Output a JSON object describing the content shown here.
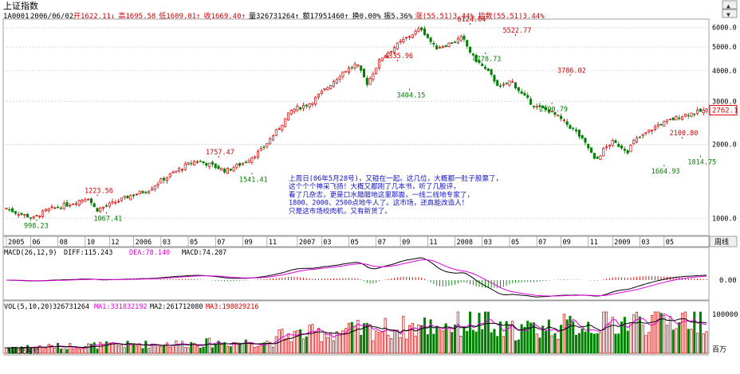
{
  "header": {
    "title": "上证指数",
    "code": "1A0001",
    "date": "2006/06/02",
    "stats": [
      {
        "label": "开",
        "value": "1622.11",
        "color": "#d00000",
        "arrow": "↓"
      },
      {
        "label": "高",
        "value": "1695.58",
        "color": "#d00000",
        "arrow": ""
      },
      {
        "label": "低",
        "value": "1609.01",
        "color": "#d00000",
        "arrow": "↑"
      },
      {
        "label": "收",
        "value": "1669.40",
        "color": "#d00000",
        "arrow": "↑"
      },
      {
        "label": "量",
        "value": "326731264",
        "color": "#000000",
        "arrow": "↑"
      },
      {
        "label": "额",
        "value": "17951460",
        "color": "#000000",
        "arrow": "↑"
      },
      {
        "label": "换",
        "value": "0.00%",
        "color": "#000000",
        "arrow": ""
      },
      {
        "label": "振",
        "value": "5.36%",
        "color": "#000000",
        "arrow": ""
      },
      {
        "label": "涨",
        "value": "(55.51)3.44%",
        "color": "#d00000",
        "arrow": ""
      },
      {
        "label": "指数",
        "value": "(55.51)3.44%",
        "color": "#d00000",
        "arrow": ""
      }
    ]
  },
  "window_buttons": {
    "up": "▲",
    "down": "▼"
  },
  "price_axis": {
    "ticks": [
      {
        "label": "6000.0",
        "value": 6000
      },
      {
        "label": "5000.0",
        "value": 5000
      },
      {
        "label": "4000.0",
        "value": 4000
      },
      {
        "label": "3000.0",
        "value": 3000
      },
      {
        "label": "2000.0",
        "value": 2000
      },
      {
        "label": "1000.0",
        "value": 1000
      }
    ],
    "current_price": "2762.1",
    "scale": "log"
  },
  "price_annotations": [
    {
      "text": "998.23",
      "value": 998.23,
      "pos": "below",
      "color": "#008000",
      "idx": 10
    },
    {
      "text": "1223.56",
      "value": 1223.56,
      "pos": "above",
      "color": "#d00000",
      "idx": 30
    },
    {
      "text": "1067.41",
      "value": 1067.41,
      "pos": "below",
      "color": "#008000",
      "idx": 33
    },
    {
      "text": "1757.47",
      "value": 1757.47,
      "pos": "above",
      "color": "#d00000",
      "idx": 70
    },
    {
      "text": "1541.41",
      "value": 1541.41,
      "pos": "below",
      "color": "#008000",
      "idx": 81
    },
    {
      "text": "4335.96",
      "value": 4335.96,
      "pos": "above",
      "color": "#d00000",
      "idx": 129
    },
    {
      "text": "3404.15",
      "value": 3404.15,
      "pos": "below",
      "color": "#008000",
      "idx": 133
    },
    {
      "text": "6124.04",
      "value": 6124.04,
      "pos": "above",
      "color": "#d00000",
      "idx": 153
    },
    {
      "text": "4778.73",
      "value": 4778.73,
      "pos": "below",
      "color": "#008000",
      "idx": 158
    },
    {
      "text": "5522.77",
      "value": 5522.77,
      "pos": "above",
      "color": "#d00000",
      "idx": 168
    },
    {
      "text": "3786.02",
      "value": 3786.02,
      "pos": "above",
      "color": "#d00000",
      "idx": 186
    },
    {
      "text": "2990.79",
      "value": 2990.79,
      "pos": "below",
      "color": "#008000",
      "idx": 180
    },
    {
      "text": "2100.80",
      "value": 2100.8,
      "pos": "above",
      "color": "#d00000",
      "idx": 223
    },
    {
      "text": "1664.93",
      "value": 1664.93,
      "pos": "below",
      "color": "#008000",
      "idx": 217
    },
    {
      "text": "1814.75",
      "value": 1814.75,
      "pos": "below",
      "color": "#008000",
      "idx": 229
    }
  ],
  "date_axis": {
    "labels": [
      {
        "text": "2005",
        "idx": 0
      },
      {
        "text": "06",
        "idx": 8
      },
      {
        "text": "08",
        "idx": 17
      },
      {
        "text": "10",
        "idx": 26
      },
      {
        "text": "12",
        "idx": 34
      },
      {
        "text": "2006",
        "idx": 42
      },
      {
        "text": "03",
        "idx": 51
      },
      {
        "text": "05",
        "idx": 60
      },
      {
        "text": "07",
        "idx": 69
      },
      {
        "text": "09",
        "idx": 78
      },
      {
        "text": "11",
        "idx": 86
      },
      {
        "text": "2007",
        "idx": 96
      },
      {
        "text": "03",
        "idx": 104
      },
      {
        "text": "05",
        "idx": 113
      },
      {
        "text": "07",
        "idx": 122
      },
      {
        "text": "09",
        "idx": 130
      },
      {
        "text": "11",
        "idx": 139
      },
      {
        "text": "2008",
        "idx": 148
      },
      {
        "text": "03",
        "idx": 157
      },
      {
        "text": "05",
        "idx": 166
      },
      {
        "text": "07",
        "idx": 175
      },
      {
        "text": "09",
        "idx": 183
      },
      {
        "text": "11",
        "idx": 192
      },
      {
        "text": "2009",
        "idx": 200
      },
      {
        "text": "03",
        "idx": 209
      },
      {
        "text": "05",
        "idx": 217
      }
    ],
    "period_button": "周线"
  },
  "annotation": {
    "lines": [
      "上周日(06年5月28号)，又碰在一起。这几位，大概都一肚子股票了，",
      "这个个个神采飞扬！大概又都刚了几本书，听了几股评，",
      "看了几杂志，更是口水腊腊地这里那面，一线二线地专家了，",
      "1800、2000、2500点地牛人了。这市场，还真能改造人！",
      "只是这市场绞肉机，又有新货了。"
    ],
    "color": "#1010c8"
  },
  "macd": {
    "title": "MACD(26,12,9)",
    "diff_label": "DIFF:115.243",
    "dea_label": "DEA:78.140",
    "macd_label": "MACD:74.207",
    "diff_color": "#000000",
    "dea_color": "#e000e0",
    "zero_label": "0.00"
  },
  "volume": {
    "title": "VOL(5,10,20)",
    "vol_label": "326731264",
    "ma1_label": "MA1:331832192",
    "ma2_label": "MA2:261712080",
    "ma3_label": "MA3:198029216",
    "top_label": "100000",
    "unit_label": "百万",
    "ma1_color": "#e000e0",
    "ma2_color": "#000000",
    "ma3_color": "#d00000"
  },
  "footer": {
    "brand": "飞狐交易师"
  },
  "colors": {
    "up": "#d00000",
    "down": "#008000",
    "grid": "#c8c8c8",
    "axis": "#808080"
  }
}
